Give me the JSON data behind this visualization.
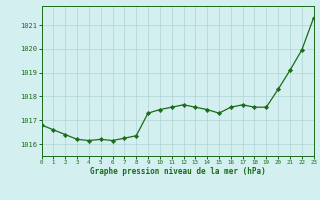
{
  "x": [
    0,
    1,
    2,
    3,
    4,
    5,
    6,
    7,
    8,
    9,
    10,
    11,
    12,
    13,
    14,
    15,
    16,
    17,
    18,
    19,
    20,
    21,
    22,
    23
  ],
  "y": [
    1016.8,
    1016.6,
    1016.4,
    1016.2,
    1016.15,
    1016.2,
    1016.15,
    1016.25,
    1016.35,
    1017.3,
    1017.45,
    1017.55,
    1017.65,
    1017.55,
    1017.45,
    1017.3,
    1017.55,
    1017.65,
    1017.55,
    1017.55,
    1018.3,
    1019.1,
    1019.95,
    1021.3
  ],
  "ylim": [
    1015.5,
    1021.8
  ],
  "yticks": [
    1016,
    1017,
    1018,
    1019,
    1020,
    1021
  ],
  "xticks": [
    0,
    1,
    2,
    3,
    4,
    5,
    6,
    7,
    8,
    9,
    10,
    11,
    12,
    13,
    14,
    15,
    16,
    17,
    18,
    19,
    20,
    21,
    22,
    23
  ],
  "line_color": "#1a6b1a",
  "marker_color": "#1a6b1a",
  "bg_color": "#d4efef",
  "grid_color": "#b0d4d4",
  "xlabel": "Graphe pression niveau de la mer (hPa)",
  "xlabel_color": "#1a6b1a",
  "tick_color": "#1a6b1a",
  "spine_color": "#1a6b1a"
}
